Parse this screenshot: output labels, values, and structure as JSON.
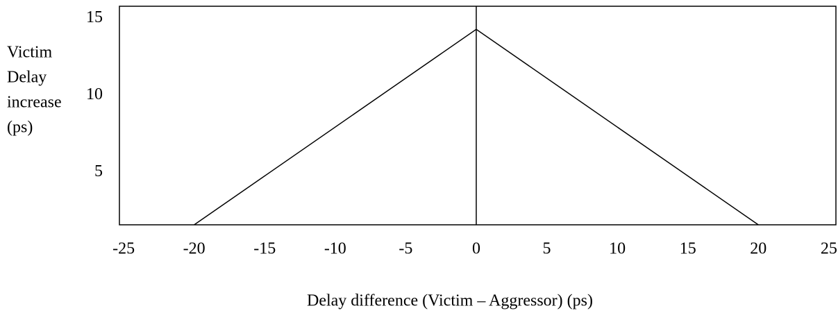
{
  "chart_data": {
    "type": "line",
    "xlabel": "Delay difference (Victim – Aggressor) (ps)",
    "ylabel": [
      "Victim",
      "Delay",
      "increase",
      "(ps)"
    ],
    "x": [
      -20,
      0,
      20
    ],
    "series": [
      {
        "color": "#000000",
        "values": [
          1.6,
          14.3,
          1.6
        ]
      }
    ],
    "xlim": [
      -25.3,
      25.5
    ],
    "xticks": [
      -25,
      -20,
      -15,
      -10,
      -5,
      0,
      5,
      10,
      15,
      20,
      25
    ],
    "ylim": [
      1.6,
      15.8
    ],
    "yticks": [
      5,
      10,
      15
    ],
    "vline": 0
  }
}
